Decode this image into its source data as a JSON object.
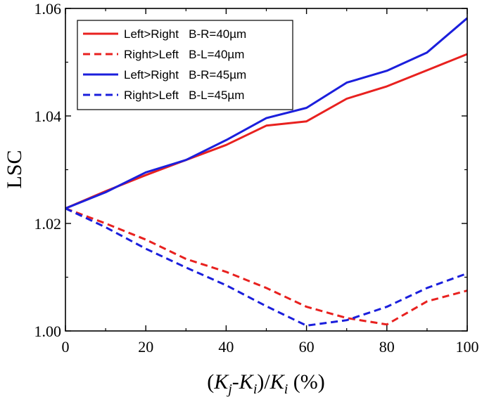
{
  "chart_data": {
    "type": "line",
    "title": "",
    "xlabel": "(Kj-Ki)/Ki (%)",
    "xlabel_parts": {
      "open": "(",
      "k1": "K",
      "sub1": "j",
      "dash": "-",
      "k2": "K",
      "sub2": "i",
      "slash": ")/",
      "k3": "K",
      "sub3": "i",
      "unit": " (%)"
    },
    "ylabel": "LSC",
    "xlim": [
      0,
      100
    ],
    "ylim": [
      1.0,
      1.06
    ],
    "x_ticks": [
      0,
      20,
      40,
      60,
      80,
      100
    ],
    "x_tick_labels": [
      "0",
      "20",
      "40",
      "60",
      "80",
      "100"
    ],
    "y_ticks": [
      1.0,
      1.02,
      1.04,
      1.06
    ],
    "y_tick_labels": [
      "1.00",
      "1.02",
      "1.04",
      "1.06"
    ],
    "legend_position": "top-left",
    "x": [
      0,
      10,
      20,
      30,
      40,
      50,
      60,
      70,
      80,
      90,
      100
    ],
    "series": [
      {
        "name": "Left>Right   B-R=40µm",
        "color": "#e8211f",
        "dash": "solid",
        "values": [
          1.0228,
          1.026,
          1.029,
          1.0318,
          1.0346,
          1.0382,
          1.039,
          1.0432,
          1.0455,
          1.0485,
          1.0515
        ]
      },
      {
        "name": "Right>Left   B-L=40µm",
        "color": "#e8211f",
        "dash": "dashed",
        "values": [
          1.0228,
          1.02,
          1.017,
          1.0134,
          1.011,
          1.008,
          1.0045,
          1.0024,
          1.0012,
          1.0055,
          1.0075
        ]
      },
      {
        "name": "Left>Right   B-R=45µm",
        "color": "#1b1fdc",
        "dash": "solid",
        "values": [
          1.0228,
          1.0258,
          1.0295,
          1.0318,
          1.0355,
          1.0396,
          1.0415,
          1.0462,
          1.0484,
          1.0518,
          1.0582
        ]
      },
      {
        "name": "Right>Left   B-L=45µm",
        "color": "#1b1fdc",
        "dash": "dashed",
        "values": [
          1.0228,
          1.0193,
          1.0153,
          1.0118,
          1.0085,
          1.0046,
          1.001,
          1.002,
          1.0045,
          1.008,
          1.0107
        ]
      }
    ]
  }
}
